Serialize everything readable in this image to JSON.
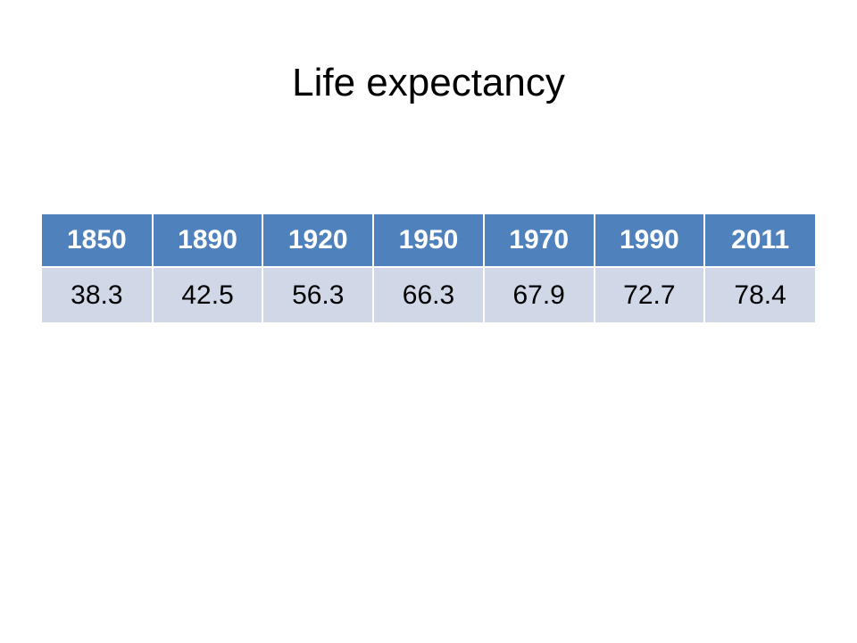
{
  "slide": {
    "title": "Life expectancy"
  },
  "colors": {
    "header_background": "#4f81bd",
    "header_text": "#ffffff",
    "row_background": "#d0d8e8",
    "row_text": "#000000"
  },
  "table": {
    "headers": [
      "1850",
      "1890",
      "1920",
      "1950",
      "1970",
      "1990",
      "2011"
    ],
    "rows": [
      [
        "38.3",
        "42.5",
        "56.3",
        "66.3",
        "67.9",
        "72.7",
        "78.4"
      ]
    ]
  }
}
